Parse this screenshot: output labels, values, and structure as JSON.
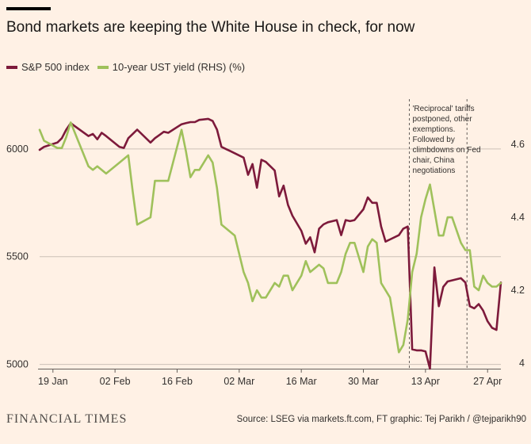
{
  "header": {
    "title": "Bond markets are keeping the White House in check, for now"
  },
  "legend": [
    {
      "label": "S&P 500 index",
      "color": "#7d1a3b"
    },
    {
      "label": "10-year UST yield (RHS) (%)",
      "color": "#9fc15b"
    }
  ],
  "footer": {
    "logo": "FINANCIAL TIMES",
    "source": "Source: LSEG via markets.ft.com, FT graphic: Tej Parikh / @tejparikh90"
  },
  "chart_data": {
    "type": "line",
    "x_ticks": [
      "19 Jan",
      "02 Feb",
      "16 Feb",
      "02 Mar",
      "16 Mar",
      "30 Mar",
      "13 Apr",
      "27 Apr"
    ],
    "x_range": [
      "2025-01-16",
      "2025-04-30"
    ],
    "y_left": {
      "ticks": [
        5000,
        5500,
        6000
      ],
      "range": [
        4980,
        6250
      ]
    },
    "y_right": {
      "ticks": [
        4,
        4.2,
        4.4,
        4.6
      ],
      "range": [
        3.985,
        4.735
      ]
    },
    "annotation": {
      "text": [
        "'Reciprocal' tariffs",
        "postponed, other",
        "exemptions.",
        "Followed by",
        "climbdowns on Fed",
        "chair, China",
        "negotiations"
      ],
      "markers": [
        "2025-04-09",
        "2025-04-22"
      ]
    },
    "series": [
      {
        "name": "S&P 500 index",
        "axis": "left",
        "color": "#7d1a3b",
        "points": [
          [
            "2025-01-16",
            5996
          ],
          [
            "2025-01-17",
            6010
          ],
          [
            "2025-01-20",
            6030
          ],
          [
            "2025-01-21",
            6050
          ],
          [
            "2025-01-22",
            6090
          ],
          [
            "2025-01-23",
            6120
          ],
          [
            "2025-01-24",
            6105
          ],
          [
            "2025-01-27",
            6060
          ],
          [
            "2025-01-28",
            6070
          ],
          [
            "2025-01-29",
            6045
          ],
          [
            "2025-01-30",
            6075
          ],
          [
            "2025-01-31",
            6060
          ],
          [
            "2025-02-03",
            6010
          ],
          [
            "2025-02-04",
            6005
          ],
          [
            "2025-02-05",
            6050
          ],
          [
            "2025-02-06",
            6070
          ],
          [
            "2025-02-07",
            6090
          ],
          [
            "2025-02-10",
            6030
          ],
          [
            "2025-02-11",
            6050
          ],
          [
            "2025-02-12",
            6065
          ],
          [
            "2025-02-13",
            6080
          ],
          [
            "2025-02-14",
            6075
          ],
          [
            "2025-02-17",
            6115
          ],
          [
            "2025-02-18",
            6120
          ],
          [
            "2025-02-19",
            6125
          ],
          [
            "2025-02-20",
            6125
          ],
          [
            "2025-02-21",
            6135
          ],
          [
            "2025-02-23",
            6140
          ],
          [
            "2025-02-24",
            6130
          ],
          [
            "2025-02-25",
            6090
          ],
          [
            "2025-02-26",
            6010
          ],
          [
            "2025-02-27",
            6000
          ],
          [
            "2025-02-28",
            5990
          ],
          [
            "2025-03-01",
            5980
          ],
          [
            "2025-03-03",
            5960
          ],
          [
            "2025-03-04",
            5880
          ],
          [
            "2025-03-05",
            5930
          ],
          [
            "2025-03-06",
            5820
          ],
          [
            "2025-03-07",
            5950
          ],
          [
            "2025-03-08",
            5940
          ],
          [
            "2025-03-10",
            5900
          ],
          [
            "2025-03-11",
            5780
          ],
          [
            "2025-03-12",
            5830
          ],
          [
            "2025-03-13",
            5740
          ],
          [
            "2025-03-14",
            5690
          ],
          [
            "2025-03-16",
            5620
          ],
          [
            "2025-03-17",
            5560
          ],
          [
            "2025-03-18",
            5590
          ],
          [
            "2025-03-19",
            5520
          ],
          [
            "2025-03-20",
            5630
          ],
          [
            "2025-03-21",
            5650
          ],
          [
            "2025-03-22",
            5660
          ],
          [
            "2025-03-24",
            5670
          ],
          [
            "2025-03-25",
            5600
          ],
          [
            "2025-03-26",
            5670
          ],
          [
            "2025-03-27",
            5665
          ],
          [
            "2025-03-28",
            5670
          ],
          [
            "2025-03-30",
            5720
          ],
          [
            "2025-03-31",
            5775
          ],
          [
            "2025-04-01",
            5750
          ],
          [
            "2025-04-02",
            5750
          ],
          [
            "2025-04-03",
            5640
          ],
          [
            "2025-04-04",
            5570
          ],
          [
            "2025-04-05",
            5580
          ],
          [
            "2025-04-07",
            5600
          ],
          [
            "2025-04-08",
            5630
          ],
          [
            "2025-04-09",
            5640
          ],
          [
            "2025-04-10",
            5070
          ],
          [
            "2025-04-11",
            5065
          ],
          [
            "2025-04-12",
            5065
          ],
          [
            "2025-04-13",
            5060
          ],
          [
            "2025-04-14",
            4980
          ],
          [
            "2025-04-15",
            5450
          ],
          [
            "2025-04-16",
            5270
          ],
          [
            "2025-04-17",
            5360
          ],
          [
            "2025-04-18",
            5385
          ],
          [
            "2025-04-19",
            5390
          ],
          [
            "2025-04-21",
            5400
          ],
          [
            "2025-04-22",
            5380
          ],
          [
            "2025-04-23",
            5270
          ],
          [
            "2025-04-24",
            5260
          ],
          [
            "2025-04-25",
            5280
          ],
          [
            "2025-04-26",
            5250
          ],
          [
            "2025-04-27",
            5200
          ],
          [
            "2025-04-28",
            5170
          ],
          [
            "2025-04-29",
            5160
          ],
          [
            "2025-04-30",
            5380
          ]
        ]
      },
      {
        "name": "10-year UST yield (RHS) (%)",
        "axis": "right",
        "color": "#9fc15b",
        "points": [
          [
            "2025-01-16",
            4.64
          ],
          [
            "2025-01-17",
            4.61
          ],
          [
            "2025-01-20",
            4.59
          ],
          [
            "2025-01-21",
            4.59
          ],
          [
            "2025-01-22",
            4.62
          ],
          [
            "2025-01-23",
            4.66
          ],
          [
            "2025-01-24",
            4.63
          ],
          [
            "2025-01-27",
            4.54
          ],
          [
            "2025-01-28",
            4.53
          ],
          [
            "2025-01-29",
            4.54
          ],
          [
            "2025-01-30",
            4.53
          ],
          [
            "2025-01-31",
            4.52
          ],
          [
            "2025-02-03",
            4.55
          ],
          [
            "2025-02-04",
            4.56
          ],
          [
            "2025-02-05",
            4.57
          ],
          [
            "2025-02-06",
            4.47
          ],
          [
            "2025-02-07",
            4.38
          ],
          [
            "2025-02-10",
            4.4
          ],
          [
            "2025-02-11",
            4.5
          ],
          [
            "2025-02-12",
            4.5
          ],
          [
            "2025-02-13",
            4.5
          ],
          [
            "2025-02-14",
            4.5
          ],
          [
            "2025-02-17",
            4.64
          ],
          [
            "2025-02-18",
            4.58
          ],
          [
            "2025-02-19",
            4.51
          ],
          [
            "2025-02-20",
            4.53
          ],
          [
            "2025-02-21",
            4.53
          ],
          [
            "2025-02-23",
            4.57
          ],
          [
            "2025-02-24",
            4.55
          ],
          [
            "2025-02-25",
            4.48
          ],
          [
            "2025-02-26",
            4.38
          ],
          [
            "2025-02-27",
            4.37
          ],
          [
            "2025-02-28",
            4.36
          ],
          [
            "2025-03-01",
            4.35
          ],
          [
            "2025-03-03",
            4.25
          ],
          [
            "2025-03-04",
            4.22
          ],
          [
            "2025-03-05",
            4.17
          ],
          [
            "2025-03-06",
            4.2
          ],
          [
            "2025-03-07",
            4.18
          ],
          [
            "2025-03-08",
            4.18
          ],
          [
            "2025-03-10",
            4.22
          ],
          [
            "2025-03-11",
            4.21
          ],
          [
            "2025-03-12",
            4.24
          ],
          [
            "2025-03-13",
            4.24
          ],
          [
            "2025-03-14",
            4.2
          ],
          [
            "2025-03-16",
            4.24
          ],
          [
            "2025-03-17",
            4.28
          ],
          [
            "2025-03-18",
            4.25
          ],
          [
            "2025-03-19",
            4.26
          ],
          [
            "2025-03-20",
            4.27
          ],
          [
            "2025-03-21",
            4.26
          ],
          [
            "2025-03-22",
            4.22
          ],
          [
            "2025-03-24",
            4.22
          ],
          [
            "2025-03-25",
            4.25
          ],
          [
            "2025-03-26",
            4.3
          ],
          [
            "2025-03-27",
            4.33
          ],
          [
            "2025-03-28",
            4.33
          ],
          [
            "2025-03-30",
            4.25
          ],
          [
            "2025-03-31",
            4.32
          ],
          [
            "2025-04-01",
            4.34
          ],
          [
            "2025-04-02",
            4.33
          ],
          [
            "2025-04-03",
            4.22
          ],
          [
            "2025-04-04",
            4.2
          ],
          [
            "2025-04-05",
            4.18
          ],
          [
            "2025-04-07",
            4.03
          ],
          [
            "2025-04-08",
            4.05
          ],
          [
            "2025-04-09",
            4.12
          ],
          [
            "2025-04-10",
            4.25
          ],
          [
            "2025-04-11",
            4.3
          ],
          [
            "2025-04-12",
            4.4
          ],
          [
            "2025-04-13",
            4.45
          ],
          [
            "2025-04-14",
            4.49
          ],
          [
            "2025-04-15",
            4.42
          ],
          [
            "2025-04-16",
            4.35
          ],
          [
            "2025-04-17",
            4.35
          ],
          [
            "2025-04-18",
            4.4
          ],
          [
            "2025-04-19",
            4.4
          ],
          [
            "2025-04-21",
            4.33
          ],
          [
            "2025-04-22",
            4.31
          ],
          [
            "2025-04-23",
            4.31
          ],
          [
            "2025-04-24",
            4.21
          ],
          [
            "2025-04-25",
            4.2
          ],
          [
            "2025-04-26",
            4.24
          ],
          [
            "2025-04-27",
            4.22
          ],
          [
            "2025-04-28",
            4.21
          ],
          [
            "2025-04-29",
            4.21
          ],
          [
            "2025-04-30",
            4.22
          ]
        ]
      }
    ]
  }
}
